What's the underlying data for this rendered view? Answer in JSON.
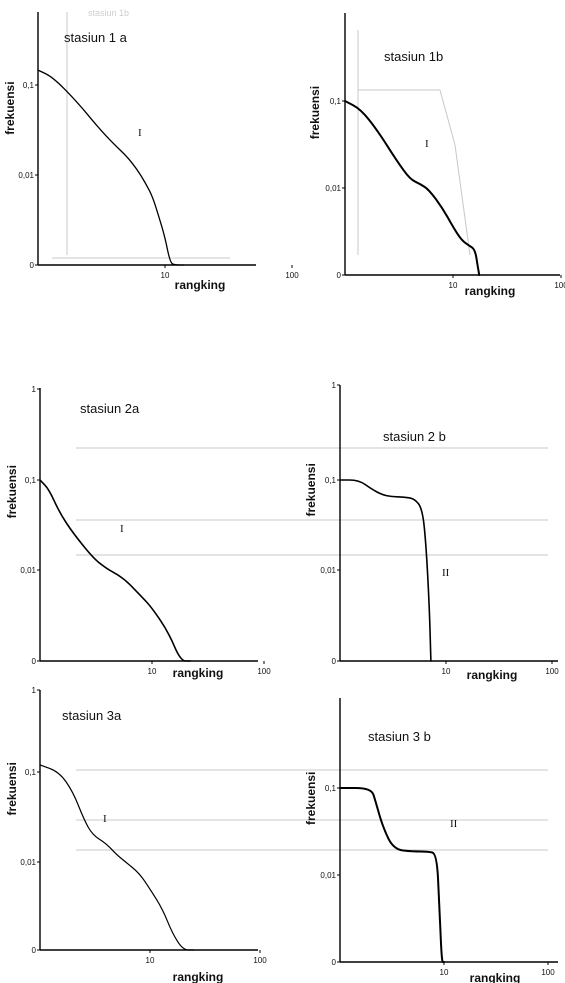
{
  "chart_data": [
    {
      "id": "1a",
      "type": "line",
      "title": "stasiun 1 a",
      "xlabel": "rangking",
      "ylabel": "frekuensi",
      "x_scale": "log",
      "y_scale": "log",
      "xlim": [
        1,
        100
      ],
      "x_ticks": [
        "10",
        "100"
      ],
      "y_ticks": [
        "0,1",
        "0,01",
        "0"
      ],
      "annotation": "I",
      "series": [
        {
          "x": [
            1,
            1.3,
            2,
            3,
            4,
            5,
            6,
            7,
            8,
            9,
            10,
            11,
            12,
            14
          ],
          "y": [
            0.14,
            0.12,
            0.07,
            0.038,
            0.026,
            0.02,
            0.015,
            0.011,
            0.008,
            0.005,
            0.0032,
            0.0018,
            0.0009,
            0.0003
          ]
        }
      ]
    },
    {
      "id": "1b",
      "type": "line",
      "title": "stasiun 1b",
      "xlabel": "rangking",
      "ylabel": "frekuensi",
      "x_scale": "log",
      "y_scale": "log",
      "xlim": [
        1,
        100
      ],
      "x_ticks": [
        "10",
        "100"
      ],
      "y_ticks": [
        "0,1",
        "0,01",
        "0"
      ],
      "annotation": "I",
      "series": [
        {
          "x": [
            1,
            1.4,
            2,
            3,
            4,
            5,
            6,
            8,
            10,
            12,
            14,
            16,
            17,
            17.5
          ],
          "y": [
            0.1,
            0.08,
            0.045,
            0.02,
            0.012,
            0.0105,
            0.009,
            0.0055,
            0.0033,
            0.0023,
            0.002,
            0.0018,
            0.0011,
            0.0002
          ]
        }
      ]
    },
    {
      "id": "2a",
      "type": "line",
      "title": "stasiun 2a",
      "xlabel": "rangking",
      "ylabel": "frekuensi",
      "x_scale": "log",
      "y_scale": "log",
      "xlim": [
        1,
        100
      ],
      "x_ticks": [
        "10",
        "100"
      ],
      "y_ticks": [
        "1",
        "0,1",
        "0,01",
        "0"
      ],
      "annotation": "I",
      "series": [
        {
          "x": [
            1,
            1.2,
            1.5,
            2,
            3,
            4,
            5,
            6,
            8,
            10,
            14,
            18,
            22
          ],
          "y": [
            0.1,
            0.08,
            0.045,
            0.027,
            0.015,
            0.0115,
            0.01,
            0.0085,
            0.006,
            0.0045,
            0.0025,
            0.0012,
            0.0003
          ]
        }
      ]
    },
    {
      "id": "2b",
      "type": "line",
      "title": "stasiun 2 b",
      "xlabel": "rangking",
      "ylabel": "frekuensi",
      "x_scale": "log",
      "y_scale": "log",
      "xlim": [
        1,
        100
      ],
      "x_ticks": [
        "10",
        "100"
      ],
      "y_ticks": [
        "1",
        "0,1",
        "0,01",
        "0"
      ],
      "annotation": "II",
      "series": [
        {
          "x": [
            1,
            1.5,
            2,
            2.5,
            3,
            4,
            5,
            6,
            6.5,
            7,
            7.2
          ],
          "y": [
            0.1,
            0.1,
            0.08,
            0.07,
            0.067,
            0.066,
            0.064,
            0.05,
            0.02,
            0.004,
            0.0003
          ]
        }
      ]
    },
    {
      "id": "3a",
      "type": "line",
      "title": "stasiun 3a",
      "xlabel": "rangking",
      "ylabel": "frekuensi",
      "x_scale": "log",
      "y_scale": "log",
      "xlim": [
        1,
        100
      ],
      "x_ticks": [
        "10",
        "100"
      ],
      "y_ticks": [
        "1",
        "0,1",
        "0,01",
        "0"
      ],
      "annotation": "I",
      "series": [
        {
          "x": [
            1,
            1.5,
            2,
            2.5,
            3,
            4,
            5,
            6,
            8,
            10,
            13,
            16,
            20,
            25
          ],
          "y": [
            0.12,
            0.1,
            0.06,
            0.03,
            0.02,
            0.016,
            0.012,
            0.01,
            0.0075,
            0.005,
            0.003,
            0.0016,
            0.0007,
            0.0002
          ]
        }
      ]
    },
    {
      "id": "3b",
      "type": "line",
      "title": "stasiun 3 b",
      "xlabel": "rangking",
      "ylabel": "frekuensi",
      "x_scale": "log",
      "y_scale": "log",
      "xlim": [
        1,
        100
      ],
      "x_ticks": [
        "10",
        "100"
      ],
      "y_ticks": [
        "0,1",
        "0,01",
        "0"
      ],
      "annotation": "II",
      "series": [
        {
          "x": [
            1,
            2,
            2.2,
            2.6,
            3.3,
            5,
            7,
            8.5,
            9,
            9.5,
            10
          ],
          "y": [
            0.1,
            0.1,
            0.07,
            0.035,
            0.02,
            0.019,
            0.019,
            0.018,
            0.005,
            0.001,
            0.0002
          ]
        }
      ]
    }
  ],
  "background_fragments": [
    "stasiun 1b"
  ]
}
